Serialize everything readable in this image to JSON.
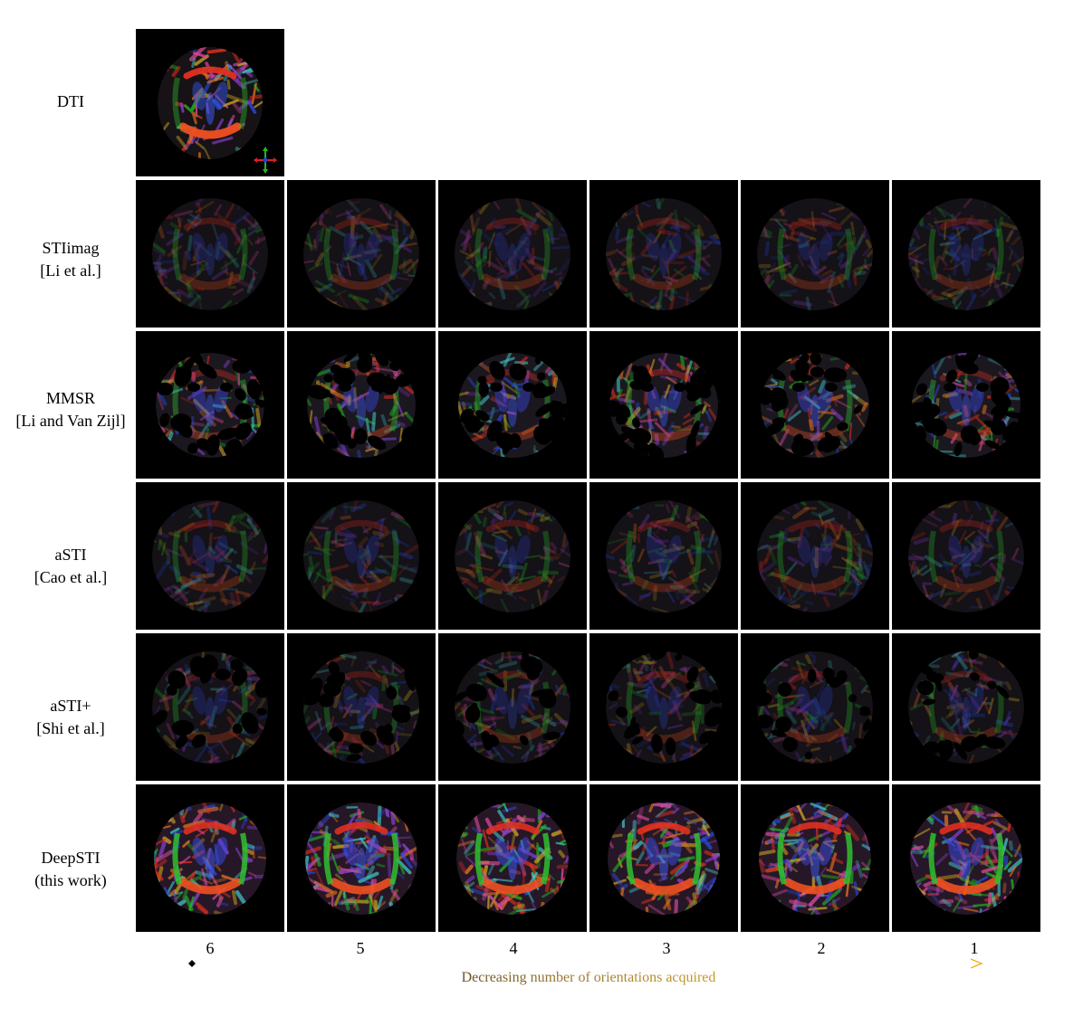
{
  "rows": [
    {
      "id": "dti",
      "lines": [
        "DTI"
      ],
      "tiles": 1,
      "style": "dti"
    },
    {
      "id": "stiimag",
      "lines": [
        "STIimag",
        "[Li et al.]"
      ],
      "tiles": 6,
      "style": "stiimag"
    },
    {
      "id": "mmsr",
      "lines": [
        "MMSR",
        "[Li and Van Zijl]"
      ],
      "tiles": 6,
      "style": "mmsr"
    },
    {
      "id": "asti",
      "lines": [
        "aSTI",
        "[Cao et al.]"
      ],
      "tiles": 6,
      "style": "asti"
    },
    {
      "id": "astiplus",
      "lines": [
        "aSTI+",
        "[Shi et al.]"
      ],
      "tiles": 6,
      "style": "astiplus"
    },
    {
      "id": "deepsti",
      "lines": [
        "DeepSTI",
        "(this work)"
      ],
      "tiles": 6,
      "style": "deepsti"
    }
  ],
  "columns": [
    "6",
    "5",
    "4",
    "3",
    "2",
    "1"
  ],
  "axis": {
    "caption": "Decreasing number of orientations acquired",
    "start_color": "#000000",
    "end_color": "#f0b01a"
  },
  "orientation_legend_colors": {
    "left_right": "#e0201c",
    "anterior_posterior": "#22b822",
    "superior_inferior": "#2a3be0"
  }
}
